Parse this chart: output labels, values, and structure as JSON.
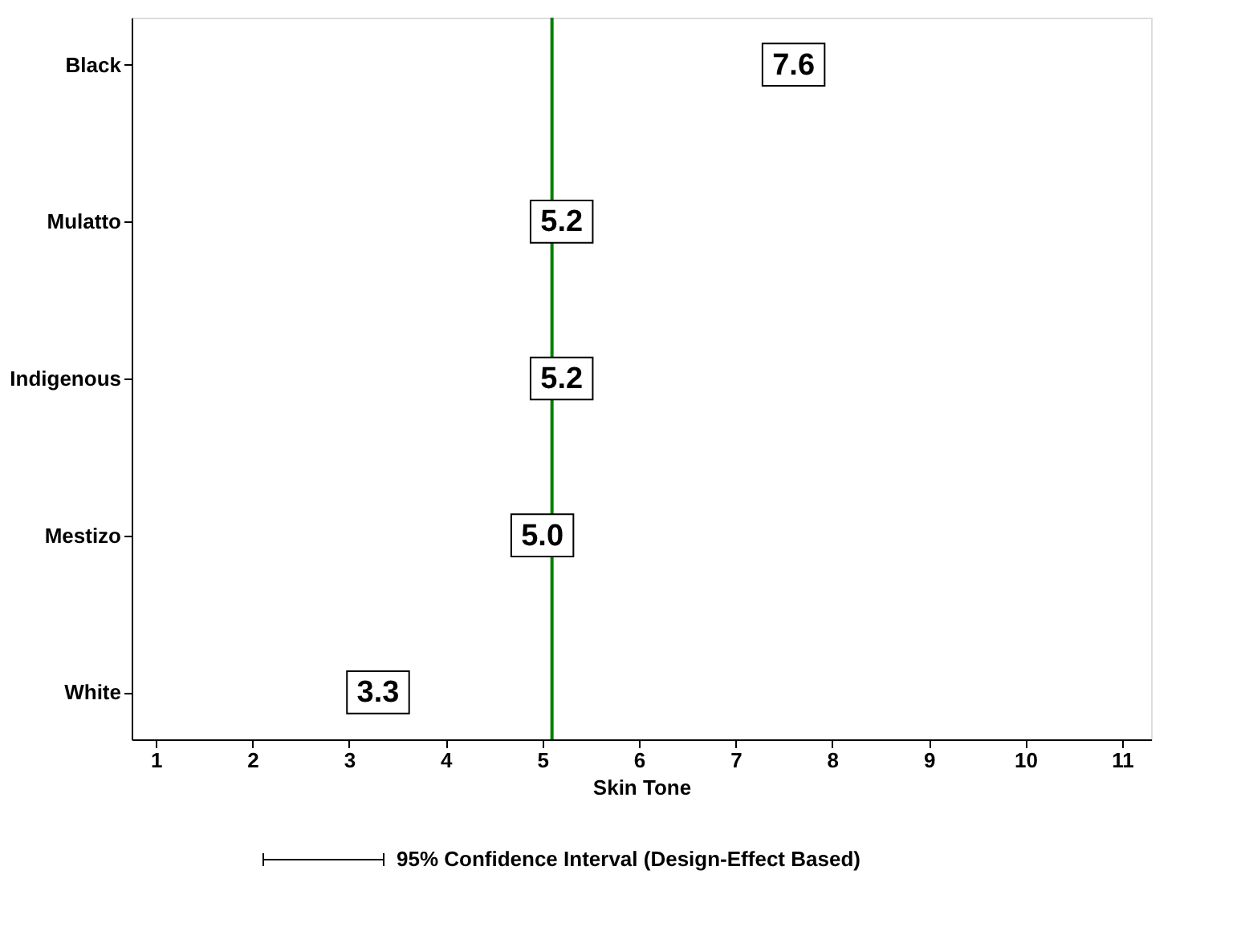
{
  "chart_data": {
    "type": "scatter",
    "categories": [
      "Black",
      "Mulatto",
      "Indigenous",
      "Mestizo",
      "White"
    ],
    "values": [
      7.6,
      5.2,
      5.2,
      5.0,
      3.3
    ],
    "value_labels": [
      "7.6",
      "5.2",
      "5.2",
      "5.0",
      "3.3"
    ],
    "orientation": "horizontal",
    "marker": "square",
    "xlabel": "Skin Tone",
    "xlim": [
      0.75,
      11.3
    ],
    "xticks": [
      1,
      2,
      3,
      4,
      5,
      6,
      7,
      8,
      9,
      10,
      11
    ],
    "ref_lines": [
      {
        "axis": "x",
        "value": 5.1,
        "color": "#008000",
        "line_style": "solid"
      }
    ],
    "annotations": [
      "95% Confidence Interval (Design-Effect Based)"
    ]
  }
}
